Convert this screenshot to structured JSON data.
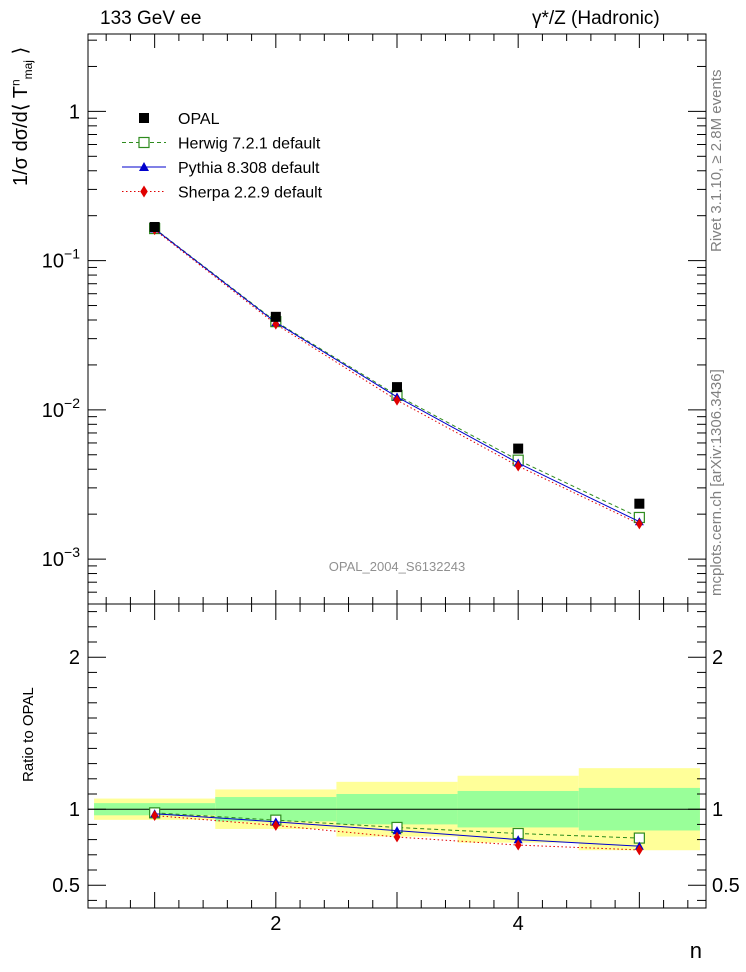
{
  "header": {
    "left": "133 GeV ee",
    "right": "γ*/Z (Hadronic)"
  },
  "side_labels": {
    "rivet": "Rivet 3.1.10, ≥ 2.8M events",
    "mcplots": "mcplots.cern.ch [arXiv:1306.3436]"
  },
  "chart_data": [
    {
      "type": "scatter",
      "panel": "main",
      "ylabel_parts": [
        "1/σ dσ/d⟨ T",
        "n",
        "maj",
        " ⟩"
      ],
      "yscale": "log",
      "ylim": [
        0.0005,
        3.3
      ],
      "xlim": [
        0.45,
        5.55
      ],
      "annotation": "OPAL_2004_S6132243",
      "y_tick_labels": [
        {
          "value": 1,
          "base": "1",
          "exp": ""
        },
        {
          "value": 0.1,
          "base": "10",
          "exp": "−1"
        },
        {
          "value": 0.01,
          "base": "10",
          "exp": "−2"
        },
        {
          "value": 0.001,
          "base": "10",
          "exp": "−3"
        }
      ],
      "legend_position": "top-left",
      "x": [
        1,
        2,
        3,
        4,
        5
      ],
      "series": [
        {
          "name": "OPAL",
          "values": [
            0.168,
            0.042,
            0.0142,
            0.0055,
            0.00235
          ],
          "color": "#000000",
          "marker": "square-filled",
          "line": "none"
        },
        {
          "name": "Herwig 7.2.1 default",
          "values": [
            0.164,
            0.039,
            0.0125,
            0.0046,
            0.0019
          ],
          "color": "#2e8b1e",
          "marker": "square-open",
          "line": "dashed"
        },
        {
          "name": "Pythia 8.308 default",
          "values": [
            0.163,
            0.0385,
            0.0122,
            0.0044,
            0.00178
          ],
          "color": "#0000cc",
          "marker": "triangle",
          "line": "solid"
        },
        {
          "name": "Sherpa 2.2.9 default",
          "values": [
            0.161,
            0.0375,
            0.0116,
            0.0042,
            0.00172
          ],
          "color": "#e00000",
          "marker": "diamond",
          "line": "dotted"
        }
      ]
    },
    {
      "type": "scatter",
      "panel": "ratio",
      "ylabel": "Ratio to OPAL",
      "ylim": [
        0.35,
        2.35
      ],
      "xlim": [
        0.45,
        5.55
      ],
      "xlabel": "n",
      "y_tick_labels": [
        "0.5",
        "1",
        "2"
      ],
      "y_ticks": [
        0.5,
        1,
        2
      ],
      "x_tick_labels": [
        "2",
        "4"
      ],
      "x_ticks": [
        2,
        4
      ],
      "bands": {
        "bins": [
          [
            0.5,
            1.5
          ],
          [
            1.5,
            2.5
          ],
          [
            2.5,
            3.5
          ],
          [
            3.5,
            4.5
          ],
          [
            4.5,
            5.5
          ]
        ],
        "yellow": [
          [
            0.93,
            1.07
          ],
          [
            0.87,
            1.13
          ],
          [
            0.82,
            1.18
          ],
          [
            0.78,
            1.22
          ],
          [
            0.73,
            1.27
          ]
        ],
        "green": [
          [
            0.96,
            1.04
          ],
          [
            0.92,
            1.08
          ],
          [
            0.9,
            1.1
          ],
          [
            0.88,
            1.12
          ],
          [
            0.86,
            1.14
          ]
        ],
        "yellow_color": "#ffff99",
        "green_color": "#99ff99"
      },
      "x": [
        1,
        2,
        3,
        4,
        5
      ],
      "series": [
        {
          "name": "Herwig 7.2.1 default",
          "values": [
            0.976,
            0.928,
            0.88,
            0.84,
            0.81
          ],
          "color": "#2e8b1e",
          "marker": "square-open",
          "line": "dashed"
        },
        {
          "name": "Pythia 8.308 default",
          "values": [
            0.97,
            0.917,
            0.859,
            0.8,
            0.757
          ],
          "color": "#0000cc",
          "marker": "triangle",
          "line": "solid"
        },
        {
          "name": "Sherpa 2.2.9 default",
          "values": [
            0.958,
            0.893,
            0.817,
            0.764,
            0.732
          ],
          "color": "#e00000",
          "marker": "diamond",
          "line": "dotted"
        }
      ]
    }
  ]
}
